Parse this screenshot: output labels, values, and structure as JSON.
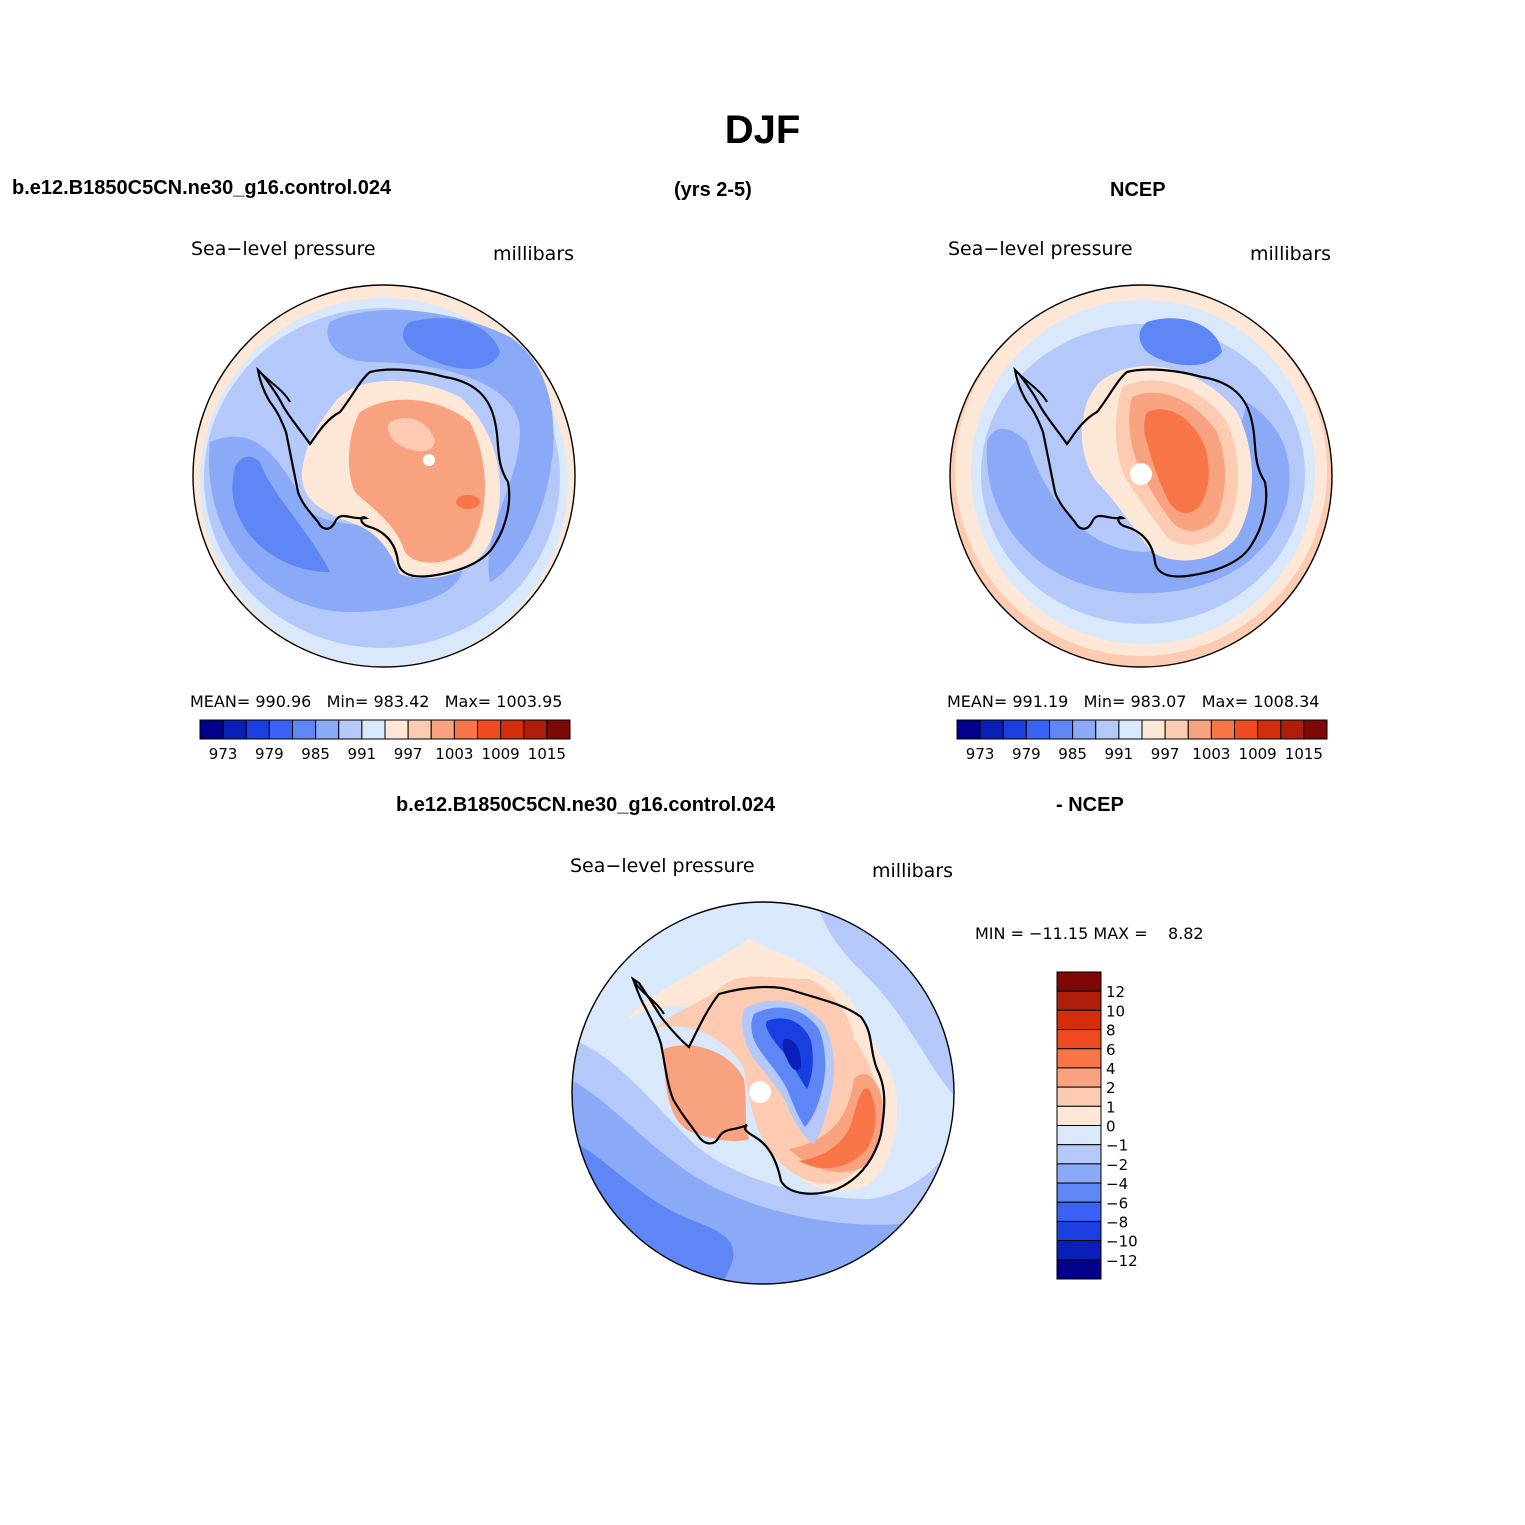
{
  "title": "DJF",
  "top_left": {
    "case_name": "b.e12.B1850C5CN.ne30_g16.control.024",
    "period": "(yrs 2-5)",
    "variable": "Sea−level pressure",
    "units": "millibars",
    "stats": {
      "mean_label": "MEAN=",
      "mean": "990.96",
      "min_label": "Min=",
      "min": "983.42",
      "max_label": "Max=",
      "max": "1003.95"
    }
  },
  "top_right": {
    "case_name": "NCEP",
    "variable": "Sea−level pressure",
    "units": "millibars",
    "stats": {
      "mean_label": "MEAN=",
      "mean": "991.19",
      "min_label": "Min=",
      "min": "983.07",
      "max_label": "Max=",
      "max": "1008.34"
    }
  },
  "bottom": {
    "case_name": "b.e12.B1850C5CN.ne30_g16.control.024",
    "diff_label": "- NCEP",
    "variable": "Sea−level pressure",
    "units": "millibars",
    "stats": {
      "min_label": "MIN =",
      "min": "−11.15",
      "max_label": "MAX =",
      "max": "8.82"
    }
  },
  "colorbar_top": {
    "colors": [
      "#00008a",
      "#0a1fb8",
      "#1a3fe0",
      "#3a63f5",
      "#5e86f5",
      "#8aaaf7",
      "#b4c8fa",
      "#d9e8fb",
      "#fde8d8",
      "#fccbb2",
      "#f9a280",
      "#f87548",
      "#ef4a20",
      "#d42d0c",
      "#ae1d08",
      "#7e0806"
    ],
    "labels": [
      "973",
      "979",
      "985",
      "991",
      "997",
      "1003",
      "1009",
      "1015"
    ]
  },
  "colorbar_diff": {
    "colors_top_to_bottom": [
      "#7e0806",
      "#ae1d08",
      "#d42d0c",
      "#ef4a20",
      "#f87548",
      "#f9a280",
      "#fccbb2",
      "#fde8d8",
      "#d9e8fb",
      "#b4c8fa",
      "#8aaaf7",
      "#5e86f5",
      "#3a63f5",
      "#1a3fe0",
      "#0a1fb8",
      "#00008a"
    ],
    "labels_top_to_bottom": [
      "12",
      "10",
      "8",
      "6",
      "4",
      "2",
      "1",
      "0",
      "−1",
      "−2",
      "−4",
      "−6",
      "−8",
      "−10",
      "−12"
    ]
  }
}
